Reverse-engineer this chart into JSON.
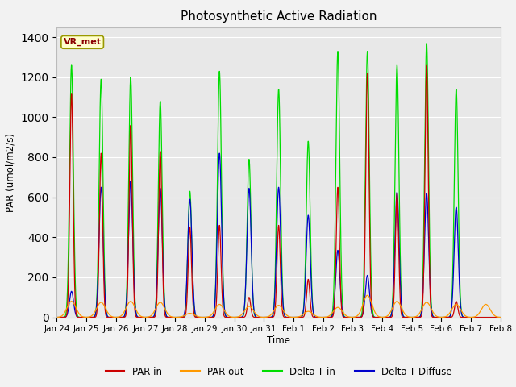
{
  "title": "Photosynthetic Active Radiation",
  "ylabel": "PAR (umol/m2/s)",
  "xlabel": "Time",
  "annotation": "VR_met",
  "ylim": [
    0,
    1450
  ],
  "yticks": [
    0,
    200,
    400,
    600,
    800,
    1000,
    1200,
    1400
  ],
  "fig_bg": "#f2f2f2",
  "plot_bg": "#e8e8e8",
  "colors": {
    "PAR_in": "#cc0000",
    "PAR_out": "#ff9900",
    "Delta_T_in": "#00dd00",
    "Delta_T_Diffuse": "#0000cc"
  },
  "x_tick_labels": [
    "Jan 24",
    "Jan 25",
    "Jan 26",
    "Jan 27",
    "Jan 28",
    "Jan 29",
    "Jan 30",
    "Jan 31",
    "Feb 1",
    "Feb 2",
    "Feb 3",
    "Feb 4",
    "Feb 5",
    "Feb 6",
    "Feb 7",
    "Feb 8"
  ],
  "par_in_peaks": [
    1120,
    820,
    960,
    830,
    450,
    460,
    100,
    460,
    190,
    650,
    1220,
    620,
    1260,
    80,
    0
  ],
  "par_out_peaks": [
    80,
    75,
    80,
    75,
    20,
    65,
    55,
    60,
    30,
    50,
    110,
    80,
    75,
    65,
    65
  ],
  "delta_t_in_peaks": [
    1260,
    1190,
    1200,
    1080,
    630,
    1230,
    790,
    1140,
    880,
    1330,
    1330,
    1260,
    1370,
    1140,
    0
  ],
  "delta_t_diff_peaks": [
    130,
    650,
    680,
    645,
    590,
    820,
    645,
    650,
    510,
    335,
    210,
    625,
    620,
    550,
    0
  ],
  "n_days": 15,
  "pts_per_day": 200
}
